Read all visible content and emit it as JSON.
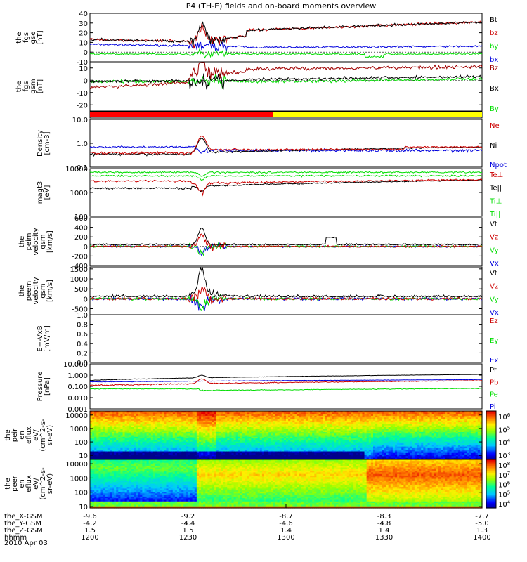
{
  "title": "P4 (TH-E) fields and on-board moments overview",
  "date": "2010 Apr 03",
  "colors": {
    "black": "#000000",
    "red": "#cc0000",
    "darkred": "#a00000",
    "green": "#00dd00",
    "blue": "#0000dd",
    "yellow": "#ffff00",
    "bar_red": "#ff0000"
  },
  "chart_data": [
    {
      "id": "fgs_gse",
      "type": "line",
      "ylabel_lines": [
        "the",
        "fgs",
        "gse",
        "[nT]"
      ],
      "yscale": "linear",
      "ylim": [
        -10,
        40
      ],
      "yticks": [
        "40",
        "30",
        "20",
        "10",
        "0",
        "-10"
      ],
      "series": [
        {
          "name": "Bt",
          "color": "#000000"
        },
        {
          "name": "bz",
          "color": "#cc0000"
        },
        {
          "name": "by",
          "color": "#00dd00"
        },
        {
          "name": "bx",
          "color": "#0000dd"
        }
      ]
    },
    {
      "id": "fgs_gsm",
      "type": "line",
      "ylabel_lines": [
        "the",
        "fgs",
        "gsm",
        "[nT]"
      ],
      "yscale": "linear",
      "ylim": [
        -25,
        15
      ],
      "yticks": [
        "20",
        "10",
        "0",
        "-10",
        "-20"
      ],
      "series": [
        {
          "name": "Bz",
          "color": "#a00000"
        },
        {
          "name": "Bx",
          "color": "#000000"
        },
        {
          "name": "By",
          "color": "#00dd00"
        }
      ]
    },
    {
      "id": "mode_bar",
      "type": "bar",
      "segments": [
        {
          "from": "1200",
          "to": "1256",
          "color": "#ff0000"
        },
        {
          "from": "1256",
          "to": "1400",
          "color": "#ffff00"
        }
      ]
    },
    {
      "id": "density",
      "type": "line",
      "ylabel_lines": [
        "Density",
        "[cm-3]"
      ],
      "yscale": "log",
      "ylim": [
        0.1,
        10
      ],
      "yticks": [
        "10.0",
        "1.0",
        "0.1"
      ],
      "series": [
        {
          "name": "Ne",
          "color": "#cc0000"
        },
        {
          "name": "Ni",
          "color": "#000000"
        },
        {
          "name": "Npot",
          "color": "#0000dd"
        }
      ]
    },
    {
      "id": "temperature",
      "type": "line",
      "ylabel_lines": [
        "magt3",
        "[eV]"
      ],
      "yscale": "log",
      "ylim": [
        100,
        10000
      ],
      "yticks": [
        "10000",
        "1000",
        "100"
      ],
      "series": [
        {
          "name": "Te⊥",
          "color": "#cc0000"
        },
        {
          "name": "Te||",
          "color": "#000000"
        },
        {
          "name": "Ti⊥",
          "color": "#00dd00"
        },
        {
          "name": "Ti||",
          "color": "#00dd00"
        }
      ]
    },
    {
      "id": "velocity_i",
      "type": "line",
      "ylabel_lines": [
        "the",
        "peim",
        "velocity",
        "gsm",
        "[km/s]"
      ],
      "yscale": "linear",
      "ylim": [
        -400,
        600
      ],
      "yticks": [
        "600",
        "400",
        "200",
        "0",
        "-200",
        "-400"
      ],
      "series": [
        {
          "name": "Vt",
          "color": "#000000"
        },
        {
          "name": "Vz",
          "color": "#cc0000"
        },
        {
          "name": "Vy",
          "color": "#00dd00"
        },
        {
          "name": "Vx",
          "color": "#0000dd"
        }
      ]
    },
    {
      "id": "velocity_e",
      "type": "line",
      "ylabel_lines": [
        "the",
        "peem",
        "velocity",
        "gsm",
        "[km/s]"
      ],
      "yscale": "linear",
      "ylim": [
        -800,
        1600
      ],
      "yticks": [
        "1500",
        "1000",
        "500",
        "0",
        "-500"
      ],
      "series": [
        {
          "name": "Vt",
          "color": "#000000"
        },
        {
          "name": "Vz",
          "color": "#cc0000"
        },
        {
          "name": "Vy",
          "color": "#00dd00"
        },
        {
          "name": "Vx",
          "color": "#0000dd"
        }
      ]
    },
    {
      "id": "efield",
      "type": "line",
      "ylabel_lines": [
        "E=-VxB",
        "[mV/m]"
      ],
      "yscale": "linear",
      "ylim": [
        0,
        1
      ],
      "yticks": [
        "1.0",
        "0.8",
        "0.6",
        "0.4",
        "0.2",
        "0.0"
      ],
      "series": [
        {
          "name": "Ez",
          "color": "#cc0000"
        },
        {
          "name": "Ey",
          "color": "#00dd00"
        },
        {
          "name": "Ex",
          "color": "#0000dd"
        }
      ]
    },
    {
      "id": "pressure",
      "type": "line",
      "ylabel_lines": [
        "Pressure",
        "[nPa]"
      ],
      "yscale": "log",
      "ylim": [
        0.001,
        10
      ],
      "yticks": [
        "10.000",
        "1.000",
        "0.100",
        "0.010",
        "0.001"
      ],
      "series": [
        {
          "name": "Pt",
          "color": "#000000"
        },
        {
          "name": "Pb",
          "color": "#cc0000"
        },
        {
          "name": "Pe",
          "color": "#00dd00"
        },
        {
          "name": "Pi",
          "color": "#0000dd"
        }
      ]
    },
    {
      "id": "ion_spec",
      "type": "heatmap",
      "ylabel_lines": [
        "the",
        "peir",
        "en",
        "eflux",
        "eV/",
        "(cm^2-s-",
        "sr-eV)"
      ],
      "yscale": "log",
      "ylim": [
        5,
        20000
      ],
      "yticks": [
        "10000",
        "1000",
        "100",
        "10"
      ],
      "colorbar": {
        "labels": [
          "10^6",
          "10^5",
          "10^4",
          "10^3"
        ]
      }
    },
    {
      "id": "electron_spec",
      "type": "heatmap",
      "ylabel_lines": [
        "the",
        "peer",
        "en",
        "eflux",
        "eV/",
        "(cm^2-s-",
        "sr-eV)"
      ],
      "yscale": "log",
      "ylim": [
        8,
        20000
      ],
      "yticks": [
        "10000",
        "1000",
        "100",
        "10"
      ],
      "colorbar": {
        "labels": [
          "10^8",
          "10^7",
          "10^6",
          "10^5",
          "10^4"
        ]
      }
    }
  ],
  "x_axis": {
    "row_labels": [
      "the_X-GSM",
      "the_Y-GSM",
      "the_Z-GSM",
      "hhmm"
    ],
    "ticks": [
      {
        "values": [
          "-9.6",
          "-4.2",
          "1.5",
          "1200"
        ]
      },
      {
        "values": [
          "-9.2",
          "-4.4",
          "1.5",
          "1230"
        ]
      },
      {
        "values": [
          "-8.7",
          "-4.6",
          "1.4",
          "1300"
        ]
      },
      {
        "values": [
          "-8.3",
          "-4.8",
          "1.4",
          "1330"
        ]
      },
      {
        "values": [
          "-7.7",
          "-5.0",
          "1.3",
          "1400"
        ]
      }
    ]
  }
}
